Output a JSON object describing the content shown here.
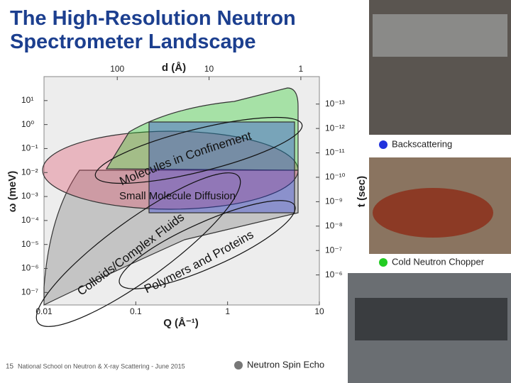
{
  "title": "The High-Resolution Neutron Spectrometer Landscape",
  "footer": {
    "page": "15",
    "text": "National School on Neutron & X-ray Scattering - June 2015"
  },
  "chart_data": {
    "type": "region-map",
    "x_label": "Q (Å⁻¹)",
    "top_label": "d (Å)",
    "y_label": "ω (meV)",
    "y2_label": "t (sec)",
    "log_scale": true,
    "xlim": [
      0.01,
      10
    ],
    "xticks": [
      0.01,
      0.1,
      1,
      10
    ],
    "dticks": [
      100,
      10,
      1
    ],
    "ylim": [
      3e-08,
      100
    ],
    "yticks": [
      {
        "value": 10,
        "label": "10¹"
      },
      {
        "value": 1,
        "label": "10⁰"
      },
      {
        "value": 0.1,
        "label": "10⁻¹"
      },
      {
        "value": 0.01,
        "label": "10⁻²"
      },
      {
        "value": 0.001,
        "label": "10⁻³"
      },
      {
        "value": 0.0001,
        "label": "10⁻⁴"
      },
      {
        "value": 1e-05,
        "label": "10⁻⁵"
      },
      {
        "value": 1e-06,
        "label": "10⁻⁶"
      },
      {
        "value": 1e-07,
        "label": "10⁻⁷"
      }
    ],
    "y2lim": [
      1.7e-05,
      7.5e-15
    ],
    "y2ticks": [
      {
        "value": 1e-13,
        "label": "10⁻¹³"
      },
      {
        "value": 1e-12,
        "label": "10⁻¹²"
      },
      {
        "value": 1e-11,
        "label": "10⁻¹¹"
      },
      {
        "value": 1e-10,
        "label": "10⁻¹⁰"
      },
      {
        "value": 1e-09,
        "label": "10⁻⁹"
      },
      {
        "value": 1e-08,
        "label": "10⁻⁸"
      },
      {
        "value": 1e-07,
        "label": "10⁻⁷"
      },
      {
        "value": 1e-06,
        "label": "10⁻⁶"
      }
    ],
    "annotations": [
      "Molecules in Confinement",
      "Small Molecule Diffusion",
      "Colloids/Complex Fluids",
      "Polymers and Proteins"
    ],
    "series": [
      {
        "name": "Backscattering",
        "color": "#2233dd"
      },
      {
        "name": "Cold Neutron Chopper",
        "color": "#22cc22"
      },
      {
        "name": "Neutron Spin Echo",
        "color": "#777777"
      }
    ]
  }
}
